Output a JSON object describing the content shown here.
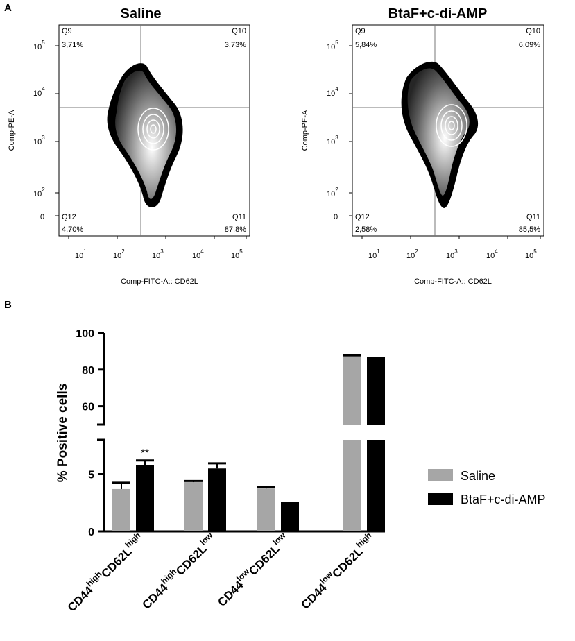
{
  "panel_a": {
    "label": "A",
    "plots": [
      {
        "title": "Saline",
        "ylabel": "Comp-PE-A",
        "xlabel": "Comp-FITC-A:: CD62L",
        "quadrants": [
          {
            "name": "Q9",
            "value": "3,71%"
          },
          {
            "name": "Q10",
            "value": "3,73%"
          },
          {
            "name": "Q12",
            "value": "4,70%"
          },
          {
            "name": "Q11",
            "value": "87,8%"
          }
        ]
      },
      {
        "title": "BtaF+c-di-AMP",
        "ylabel": "Comp-PE-A",
        "xlabel": "Comp-FITC-A:: CD62L",
        "quadrants": [
          {
            "name": "Q9",
            "value": "5,84%"
          },
          {
            "name": "Q10",
            "value": "6,09%"
          },
          {
            "name": "Q12",
            "value": "2,58%"
          },
          {
            "name": "Q11",
            "value": "85,5%"
          }
        ]
      }
    ],
    "y_ticks": [
      {
        "base": "10",
        "exp": "5"
      },
      {
        "base": "10",
        "exp": "4"
      },
      {
        "base": "10",
        "exp": "3"
      },
      {
        "base": "10",
        "exp": "2"
      },
      {
        "base": "0",
        "exp": ""
      }
    ],
    "x_ticks": [
      {
        "base": "10",
        "exp": "1"
      },
      {
        "base": "10",
        "exp": "2"
      },
      {
        "base": "10",
        "exp": "3"
      },
      {
        "base": "10",
        "exp": "4"
      },
      {
        "base": "10",
        "exp": "5"
      }
    ]
  },
  "panel_b": {
    "label": "B"
  },
  "chart_data": {
    "type": "bar",
    "ylabel": "% Positive cells",
    "y_axis_break": true,
    "ylim_lower": [
      0,
      8
    ],
    "ylim_upper": [
      50,
      100
    ],
    "yticks_lower": [
      0,
      5
    ],
    "yticks_upper": [
      60,
      80,
      100
    ],
    "categories": [
      {
        "base1": "CD44",
        "sup1": "high",
        "base2": "CD62L",
        "sup2": "high"
      },
      {
        "base1": "CD44",
        "sup1": "high",
        "base2": "CD62L",
        "sup2": "low"
      },
      {
        "base1": "CD44",
        "sup1": "low",
        "base2": "CD62L",
        "sup2": "low"
      },
      {
        "base1": "CD44",
        "sup1": "low",
        "base2": "CD62L",
        "sup2": "high"
      }
    ],
    "series": [
      {
        "name": "Saline",
        "color": "#a6a6a6",
        "values": [
          3.7,
          4.3,
          3.75,
          87.5
        ],
        "errors": [
          0.55,
          0.1,
          0.1,
          0.35
        ]
      },
      {
        "name": "BtaF+c-di-AMP",
        "color": "#000000",
        "values": [
          5.8,
          5.5,
          2.55,
          85.8
        ],
        "errors": [
          0.4,
          0.45,
          0.0,
          0.6
        ]
      }
    ],
    "annotations": [
      {
        "category_index": 0,
        "series_index": 1,
        "text": "**"
      }
    ],
    "legend_position": "right"
  }
}
